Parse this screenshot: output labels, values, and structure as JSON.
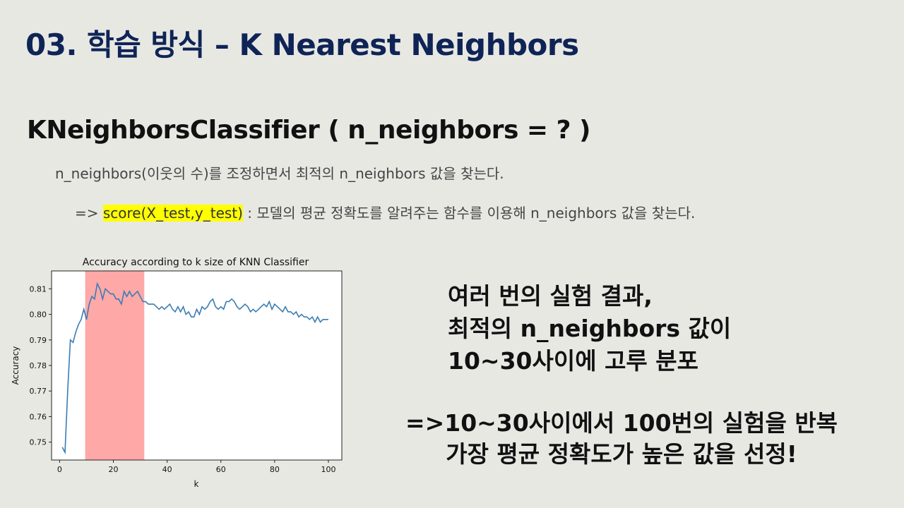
{
  "slide": {
    "title": "03. 학습 방식 – K Nearest Neighbors",
    "subtitle": "KNeighborsClassifier ( n_neighbors = ? )",
    "desc_line1": "n_neighbors(이웃의 수)를 조정하면서 최적의 n_neighbors 값을 찾는다.",
    "desc_line2_prefix": "=> ",
    "desc_line2_highlight": "score(X_test,y_test)",
    "desc_line2_suffix": " : 모델의 평균 정확도를 알려주는 함수를 이용해 n_neighbors 값을 찾는다.",
    "result_lines": [
      "여러 번의 실험 결과,",
      "최적의 n_neighbors 값이",
      "10~30사이에 고루 분포"
    ],
    "conclusion_lines": [
      "=>10~30사이에서 100번의 실험을 반복",
      "가장 평균 정확도가 높은 값을 선정!"
    ]
  },
  "colors": {
    "title": "#0f2456",
    "line": "#3a7db3",
    "band": "#ffa8a8",
    "highlight": "#ffff00"
  },
  "chart_data": {
    "type": "line",
    "title": "Accuracy according to k size of KNN Classifier",
    "xlabel": "k",
    "ylabel": "Accuracy",
    "xlim": [
      -3,
      105
    ],
    "ylim": [
      0.743,
      0.817
    ],
    "xticks": [
      0,
      20,
      40,
      60,
      80,
      100
    ],
    "yticks": [
      0.75,
      0.76,
      0.77,
      0.78,
      0.79,
      0.8,
      0.81
    ],
    "ytick_labels": [
      "0.75",
      "0.76",
      "0.77",
      "0.78",
      "0.79",
      "0.80",
      "0.81"
    ],
    "highlight_band": [
      9.5,
      31.5
    ],
    "series": [
      {
        "x": [
          1,
          2,
          3,
          4,
          5,
          6,
          7,
          8,
          9,
          10,
          11,
          12,
          13,
          14,
          15,
          16,
          17,
          18,
          19,
          20,
          21,
          22,
          23,
          24,
          25,
          26,
          27,
          28,
          29,
          30,
          31,
          32,
          33,
          34,
          35,
          36,
          37,
          38,
          39,
          40,
          41,
          42,
          43,
          44,
          45,
          46,
          47,
          48,
          49,
          50,
          51,
          52,
          53,
          54,
          55,
          56,
          57,
          58,
          59,
          60,
          61,
          62,
          63,
          64,
          65,
          66,
          67,
          68,
          69,
          70,
          71,
          72,
          73,
          74,
          75,
          76,
          77,
          78,
          79,
          80,
          81,
          82,
          83,
          84,
          85,
          86,
          87,
          88,
          89,
          90,
          91,
          92,
          93,
          94,
          95,
          96,
          97,
          98,
          99,
          100
        ],
        "values": [
          0.748,
          0.746,
          0.77,
          0.79,
          0.789,
          0.793,
          0.796,
          0.798,
          0.802,
          0.798,
          0.804,
          0.807,
          0.806,
          0.812,
          0.81,
          0.806,
          0.81,
          0.809,
          0.808,
          0.808,
          0.806,
          0.806,
          0.804,
          0.809,
          0.807,
          0.809,
          0.807,
          0.808,
          0.809,
          0.807,
          0.805,
          0.805,
          0.804,
          0.804,
          0.804,
          0.803,
          0.802,
          0.803,
          0.802,
          0.803,
          0.804,
          0.802,
          0.801,
          0.803,
          0.801,
          0.803,
          0.8,
          0.801,
          0.799,
          0.799,
          0.802,
          0.8,
          0.803,
          0.802,
          0.803,
          0.805,
          0.806,
          0.803,
          0.802,
          0.803,
          0.802,
          0.805,
          0.805,
          0.806,
          0.805,
          0.803,
          0.802,
          0.803,
          0.804,
          0.803,
          0.801,
          0.802,
          0.801,
          0.802,
          0.803,
          0.804,
          0.803,
          0.805,
          0.802,
          0.804,
          0.803,
          0.802,
          0.801,
          0.803,
          0.801,
          0.801,
          0.8,
          0.801,
          0.799,
          0.8,
          0.799,
          0.799,
          0.798,
          0.799,
          0.797,
          0.799,
          0.797,
          0.798,
          0.798,
          0.798
        ]
      }
    ]
  }
}
